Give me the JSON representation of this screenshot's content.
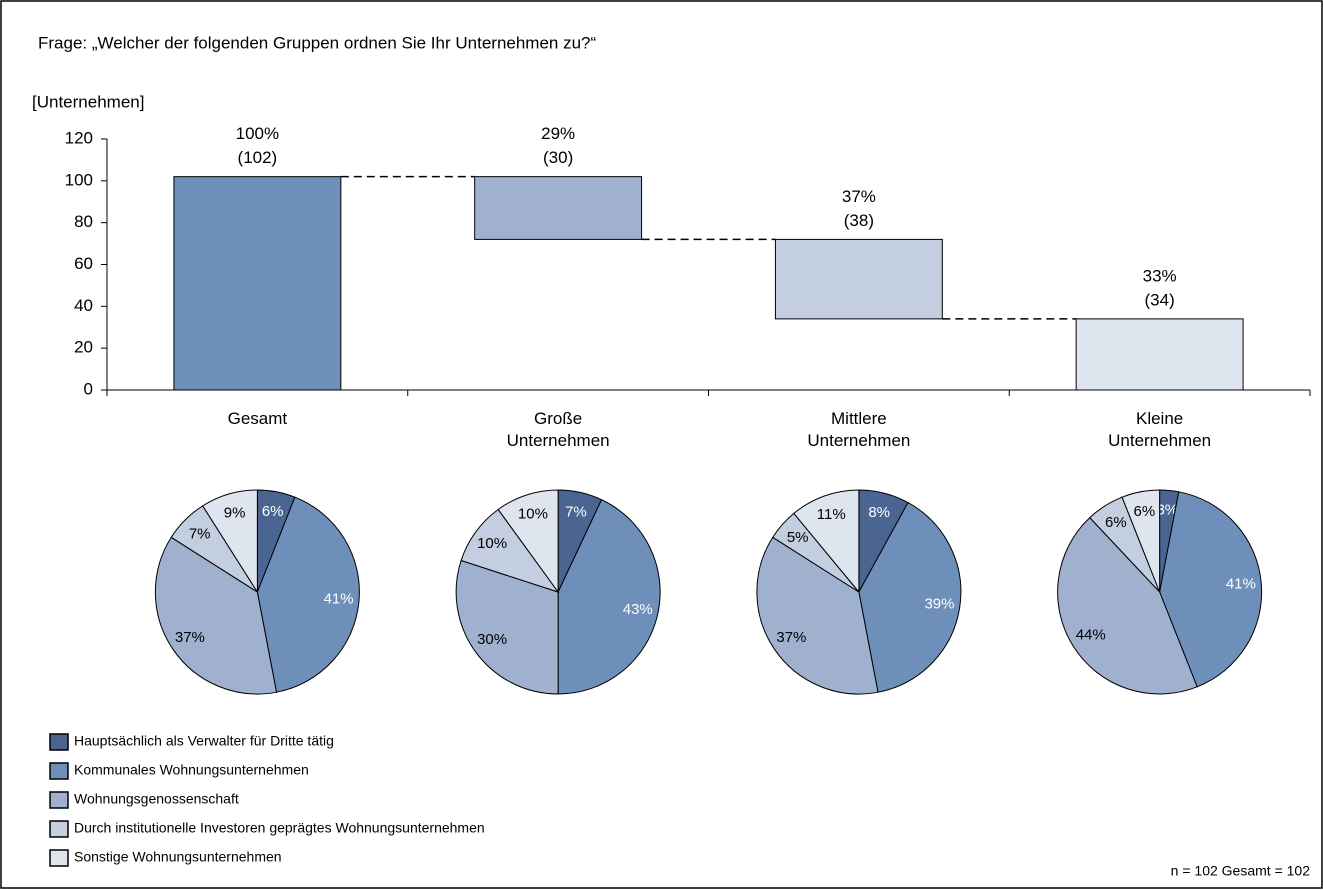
{
  "chart_data": [
    {
      "type": "waterfall",
      "title": "Frage: „Welcher der folgenden Gruppen ordnen Sie Ihr Unternehmen zu?“",
      "y_label": "[Unternehmen]",
      "categories": [
        "Gesamt",
        "Große Unternehmen",
        "Mittlere Unternehmen",
        "Kleine Unternehmen"
      ],
      "values": [
        102,
        30,
        38,
        34
      ],
      "value_labels": [
        "(102)",
        "(30)",
        "(38)",
        "(34)"
      ],
      "shares": [
        100,
        29,
        37,
        33
      ],
      "share_labels": [
        "100%",
        "29%",
        "37%",
        "33%"
      ],
      "colors": [
        "#6f8fbb",
        "#9fb1cf",
        "#c3cee0",
        "#dfe5ef"
      ],
      "ylim": [
        0,
        120
      ],
      "yticks": [
        0,
        20,
        40,
        60,
        80,
        100,
        120
      ]
    },
    {
      "type": "pie",
      "categories": [
        "Hauptsächlich als Verwalter für Dritte tätig",
        "Kommunales Wohnungsunternehmen",
        "Wohnungsgenossenschaft",
        "Durch institutionelle Investoren geprägtes Wohnungsunternehmen",
        "Sonstige Wohnungsunternehmen"
      ],
      "colors": [
        "#4a6591",
        "#6f8fbb",
        "#9fb1cf",
        "#c3cee0",
        "#dfe5ef"
      ],
      "series": [
        {
          "values": [
            6,
            41,
            37,
            7,
            9
          ],
          "value_labels": [
            "6%",
            "41%",
            "37%",
            "7%",
            "9%"
          ]
        },
        {
          "values": [
            7,
            43,
            30,
            10,
            10
          ],
          "value_labels": [
            "7%",
            "43%",
            "30%",
            "10%",
            "10%"
          ]
        },
        {
          "values": [
            8,
            39,
            37,
            5,
            11
          ],
          "value_labels": [
            "8%",
            "39%",
            "37%",
            "5%",
            "11%"
          ]
        },
        {
          "values": [
            3,
            41,
            44,
            6,
            6
          ],
          "value_labels": [
            "3%",
            "41%",
            "44%",
            "6%",
            "6%"
          ]
        }
      ],
      "legend": "bottom-left"
    }
  ],
  "note": "n = 102 Gesamt = 102"
}
